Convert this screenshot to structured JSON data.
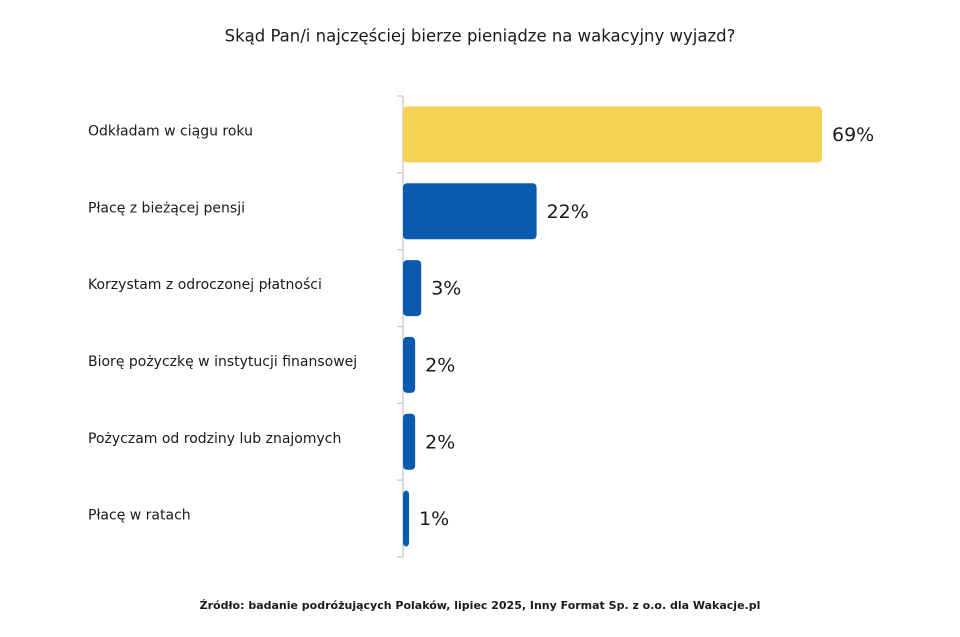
{
  "chart_data": {
    "type": "bar",
    "orientation": "horizontal",
    "title": "Skąd Pan/i najczęściej bierze pieniądze na wakacyjny wyjazd?",
    "source": "Źródło: badanie podróżujących Polaków, lipiec 2025, Inny Format Sp. z o.o. dla Wakacje.pl",
    "categories": [
      "Odkładam w ciągu roku",
      "Płacę z bieżącej pensji",
      "Korzystam z odroczonej płatności",
      "Biorę pożyczkę w instytucji finansowej",
      "Pożyczam od rodziny lub znajomych",
      "Płacę w ratach"
    ],
    "values": [
      69,
      22,
      3,
      2,
      2,
      1
    ],
    "value_labels": [
      "69%",
      "22%",
      "3%",
      "2%",
      "2%",
      "1%"
    ],
    "colors": [
      "#f6d254",
      "#0a5bb0",
      "#0a5bb0",
      "#0a5bb0",
      "#0a5bb0",
      "#0a5bb0"
    ]
  }
}
